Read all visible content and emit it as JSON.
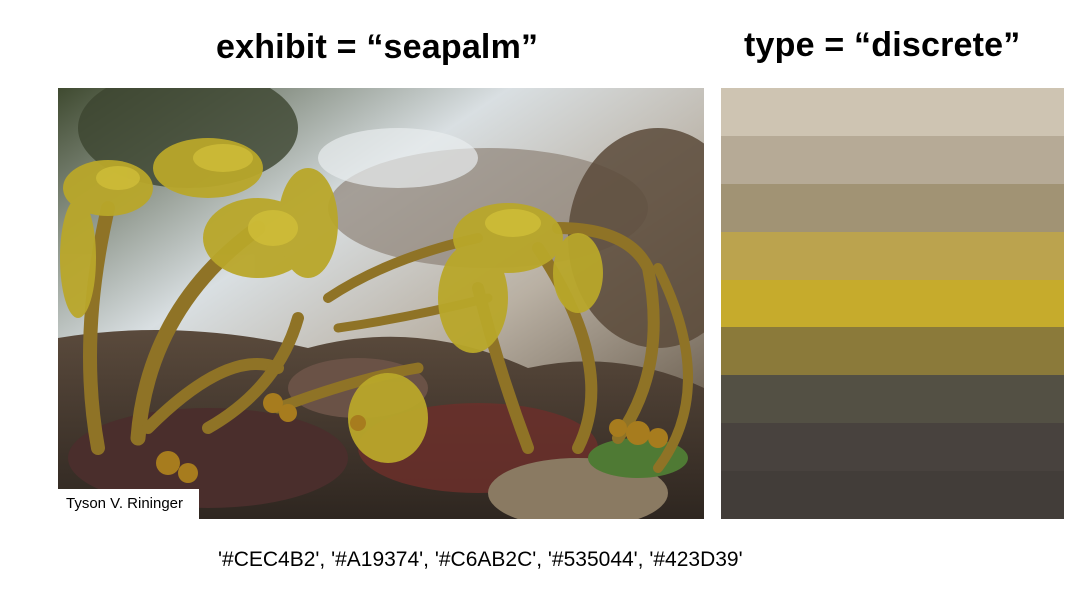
{
  "left_title": "exhibit =  “seapalm”",
  "right_title": "type = “discrete”",
  "photo": {
    "subject": "sea palm kelp on rocks",
    "credit": "Tyson V. Rininger"
  },
  "palette": {
    "swatches": [
      "#CEC4B2",
      "#B6AA96",
      "#A19374",
      "#BBA34E",
      "#C6AB2C",
      "#8B7A3A",
      "#535044",
      "#48423E",
      "#423D39"
    ]
  },
  "codes_text": "'#CEC4B2', '#A19374', '#C6AB2C', '#535044', '#423D39'"
}
